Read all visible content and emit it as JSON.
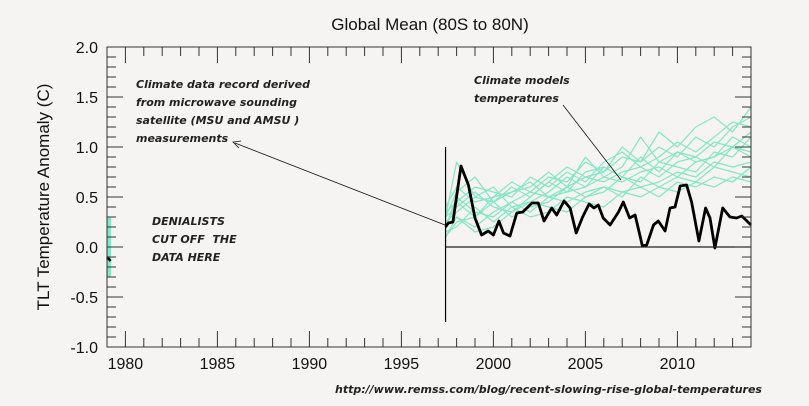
{
  "chart_data": {
    "type": "line",
    "title": "Global Mean (80S to 80N)",
    "xlabel": "",
    "ylabel": "TLT Temperature Anomaly (C)",
    "xlim": [
      1979,
      2014
    ],
    "ylim": [
      -1.0,
      2.0
    ],
    "xticks": [
      "1980",
      "1985",
      "1990",
      "1995",
      "2000",
      "2005",
      "2010"
    ],
    "yticks": [
      "2.0",
      "1.5",
      "1.0",
      "0.5",
      "0.0",
      "-0.5",
      "-1.0"
    ],
    "grid": false,
    "colors": {
      "models": "#84e6c6",
      "observed": "#000000",
      "background": "#f5f4f2"
    },
    "observed": {
      "x": [
        1997.4,
        1997.55,
        1997.8,
        1998.24,
        1998.64,
        1999.0,
        1999.36,
        1999.72,
        2000.0,
        2000.3,
        2000.55,
        2000.9,
        2001.27,
        2001.6,
        2002.1,
        2002.44,
        2002.75,
        2003.17,
        2003.44,
        2003.84,
        2004.17,
        2004.5,
        2004.85,
        2005.2,
        2005.47,
        2005.7,
        2005.97,
        2006.34,
        2006.8,
        2007.06,
        2007.4,
        2007.7,
        2008.1,
        2008.33,
        2008.7,
        2008.96,
        2009.33,
        2009.6,
        2009.87,
        2010.15,
        2010.5,
        2010.77,
        2011.17,
        2011.53,
        2011.77,
        2012.04,
        2012.46,
        2012.86,
        2013.22,
        2013.5,
        2014.0
      ],
      "y": [
        0.2,
        0.24,
        0.25,
        0.81,
        0.62,
        0.29,
        0.12,
        0.16,
        0.12,
        0.26,
        0.14,
        0.11,
        0.34,
        0.35,
        0.44,
        0.44,
        0.26,
        0.39,
        0.32,
        0.46,
        0.39,
        0.14,
        0.3,
        0.43,
        0.39,
        0.42,
        0.29,
        0.22,
        0.35,
        0.45,
        0.29,
        0.32,
        0.01,
        0.02,
        0.22,
        0.26,
        0.16,
        0.39,
        0.4,
        0.61,
        0.62,
        0.45,
        0.06,
        0.39,
        0.29,
        -0.01,
        0.39,
        0.3,
        0.29,
        0.31,
        0.22
      ]
    },
    "observed_start": {
      "x": [
        1979.0,
        1979.2
      ],
      "y": [
        -0.1,
        -0.14
      ]
    },
    "models_start_range": {
      "x": 1979.1,
      "y": [
        -0.3,
        0.3
      ]
    },
    "models": {
      "x": [
        1997.4,
        1998,
        1999,
        2000,
        2001,
        2002,
        2003,
        2004,
        2005,
        2006,
        2007,
        2008,
        2009,
        2010,
        2011,
        2012,
        2013,
        2014
      ],
      "series": [
        [
          0.2,
          0.5,
          0.35,
          0.3,
          0.45,
          0.55,
          0.5,
          0.6,
          0.7,
          0.65,
          0.75,
          0.8,
          0.7,
          0.85,
          0.9,
          0.8,
          1.0,
          0.95
        ],
        [
          0.3,
          0.4,
          0.55,
          0.4,
          0.35,
          0.5,
          0.65,
          0.55,
          0.6,
          0.8,
          0.7,
          0.65,
          0.85,
          0.8,
          0.75,
          0.95,
          0.9,
          1.1
        ],
        [
          0.1,
          0.25,
          0.3,
          0.45,
          0.3,
          0.4,
          0.45,
          0.6,
          0.5,
          0.55,
          0.7,
          0.6,
          0.65,
          0.75,
          0.7,
          0.85,
          0.8,
          0.85
        ],
        [
          0.4,
          0.6,
          0.45,
          0.5,
          0.65,
          0.55,
          0.7,
          0.65,
          0.85,
          0.75,
          0.9,
          0.85,
          1.0,
          0.9,
          1.1,
          1.0,
          1.2,
          1.3
        ],
        [
          0.2,
          0.3,
          0.2,
          0.35,
          0.45,
          0.35,
          0.5,
          0.45,
          0.55,
          0.6,
          0.5,
          0.7,
          0.6,
          0.7,
          0.65,
          0.8,
          0.75,
          0.7
        ],
        [
          0.35,
          0.45,
          0.6,
          0.55,
          0.5,
          0.7,
          0.6,
          0.75,
          0.65,
          0.85,
          0.95,
          0.8,
          0.9,
          1.05,
          0.95,
          1.1,
          1.25,
          1.2
        ],
        [
          0.15,
          0.2,
          0.4,
          0.25,
          0.4,
          0.3,
          0.35,
          0.5,
          0.45,
          0.4,
          0.55,
          0.5,
          0.6,
          0.55,
          0.65,
          0.6,
          0.7,
          0.65
        ],
        [
          0.3,
          0.85,
          0.5,
          0.45,
          0.55,
          0.6,
          0.75,
          0.6,
          0.9,
          0.7,
          0.8,
          1.1,
          0.85,
          0.95,
          0.9,
          1.05,
          1.0,
          1.15
        ],
        [
          0.25,
          0.35,
          0.5,
          0.6,
          0.4,
          0.45,
          0.55,
          0.7,
          0.6,
          0.7,
          0.65,
          0.75,
          0.8,
          0.7,
          0.85,
          0.9,
          1.0,
          0.9
        ],
        [
          0.1,
          0.3,
          0.15,
          0.2,
          0.35,
          0.45,
          0.4,
          0.35,
          0.5,
          0.6,
          0.55,
          0.6,
          0.5,
          0.65,
          0.6,
          0.7,
          0.65,
          0.8
        ],
        [
          0.3,
          0.55,
          0.7,
          0.45,
          0.6,
          0.5,
          0.65,
          0.8,
          0.7,
          0.75,
          1.0,
          0.85,
          1.15,
          1.0,
          1.2,
          1.3,
          1.15,
          1.4
        ],
        [
          0.2,
          0.45,
          0.3,
          0.5,
          0.55,
          0.65,
          0.5,
          0.55,
          0.75,
          0.8,
          0.7,
          0.9,
          0.75,
          0.95,
          0.85,
          0.9,
          1.1,
          1.0
        ]
      ]
    },
    "cutoff_x": 1997.4,
    "annotations": {
      "observed": "Climate data record derived\nfrom microwave sounding\nsatellite (MSU and AMSU )\nmeasurements",
      "models": "Climate models\ntemperatures",
      "cutoff": "DENIALISTS\nCUT OFF  THE\nDATA HERE"
    },
    "source": "http://www.remss.com/blog/recent-slowing-rise-global-temperatures"
  }
}
